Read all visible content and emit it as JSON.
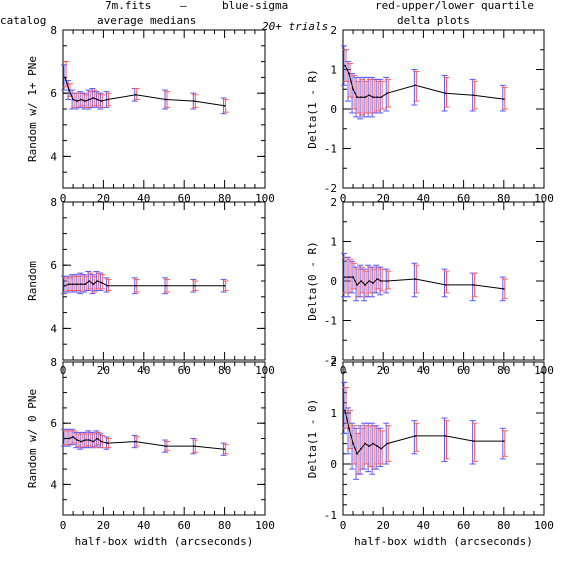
{
  "header": {
    "filename": "7m.fits",
    "dash": "—",
    "blue_label": "blue-sigma",
    "red_label": "red-upper/lower quartile",
    "catalog_label": "catalog",
    "medians_label": "average medians",
    "trials_label": "20+ trials",
    "delta_label": "delta plots"
  },
  "colors": {
    "blue": "#5a5aff",
    "red": "#ff5a5a",
    "line": "#000000"
  },
  "chart_data": [
    {
      "type": "line",
      "ylabel": "Random w/ 1+ PNe",
      "xlabel": "",
      "xlim": [
        0,
        100
      ],
      "ylim": [
        3,
        8
      ],
      "xticks": [
        "0",
        "20",
        "40",
        "60",
        "80",
        "100"
      ],
      "yticks": [
        "4",
        "6",
        "8"
      ],
      "x": [
        1,
        3,
        5,
        7,
        9,
        11,
        13,
        15,
        17,
        19,
        22,
        36,
        51,
        65,
        80
      ],
      "y": [
        6.5,
        6.1,
        5.8,
        5.75,
        5.8,
        5.75,
        5.8,
        5.85,
        5.8,
        5.75,
        5.8,
        5.95,
        5.8,
        5.75,
        5.6
      ],
      "sigma_low": [
        6.1,
        5.8,
        5.5,
        5.5,
        5.55,
        5.5,
        5.5,
        5.55,
        5.55,
        5.5,
        5.55,
        5.75,
        5.5,
        5.5,
        5.35
      ],
      "sigma_high": [
        6.9,
        6.4,
        6.1,
        6.0,
        6.05,
        6.0,
        6.1,
        6.15,
        6.05,
        6.0,
        6.05,
        6.15,
        6.1,
        6.0,
        5.85
      ],
      "quartile_low": [
        6.2,
        5.9,
        5.55,
        5.55,
        5.6,
        5.55,
        5.55,
        5.6,
        5.6,
        5.55,
        5.6,
        5.8,
        5.55,
        5.55,
        5.4
      ],
      "quartile_high": [
        7.0,
        6.3,
        6.0,
        6.0,
        6.0,
        5.95,
        6.05,
        6.1,
        6.0,
        5.95,
        6.0,
        6.15,
        6.05,
        5.95,
        5.8
      ]
    },
    {
      "type": "line",
      "ylabel": "Delta(1 - R)",
      "xlabel": "",
      "xlim": [
        0,
        100
      ],
      "ylim": [
        -2,
        2
      ],
      "xticks": [
        "0",
        "20",
        "40",
        "60",
        "80",
        "100"
      ],
      "yticks": [
        "-2",
        "-1",
        "0",
        "1",
        "2"
      ],
      "x": [
        1,
        3,
        5,
        7,
        9,
        11,
        13,
        15,
        17,
        19,
        22,
        36,
        51,
        65,
        80
      ],
      "y": [
        1.1,
        0.9,
        0.5,
        0.3,
        0.3,
        0.3,
        0.35,
        0.3,
        0.3,
        0.3,
        0.4,
        0.6,
        0.4,
        0.35,
        0.25
      ],
      "sigma_low": [
        0.6,
        0.2,
        -0.1,
        -0.2,
        -0.25,
        -0.2,
        -0.2,
        -0.2,
        -0.1,
        -0.1,
        -0.05,
        0.1,
        -0.05,
        -0.05,
        -0.05
      ],
      "sigma_high": [
        1.6,
        1.2,
        0.9,
        0.8,
        0.8,
        0.8,
        0.8,
        0.8,
        0.75,
        0.75,
        0.8,
        1.0,
        0.85,
        0.75,
        0.6
      ],
      "quartile_low": [
        0.7,
        0.3,
        0.0,
        -0.1,
        -0.15,
        -0.1,
        -0.1,
        -0.1,
        -0.05,
        0.0,
        0.05,
        0.2,
        0.05,
        0.0,
        0.0
      ],
      "quartile_high": [
        1.5,
        1.15,
        0.85,
        0.7,
        0.75,
        0.7,
        0.75,
        0.75,
        0.7,
        0.7,
        0.75,
        0.95,
        0.8,
        0.7,
        0.55
      ]
    },
    {
      "type": "line",
      "ylabel": "Random",
      "xlabel": "",
      "xlim": [
        0,
        100
      ],
      "ylim": [
        3,
        8
      ],
      "xticks": [
        "0",
        "20",
        "40",
        "60",
        "80",
        "100"
      ],
      "yticks": [
        "4",
        "6",
        "8"
      ],
      "x": [
        1,
        3,
        5,
        7,
        9,
        11,
        13,
        15,
        17,
        19,
        22,
        36,
        51,
        65,
        80
      ],
      "y": [
        5.35,
        5.4,
        5.4,
        5.4,
        5.4,
        5.4,
        5.5,
        5.4,
        5.5,
        5.45,
        5.35,
        5.35,
        5.35,
        5.35,
        5.35
      ],
      "sigma_low": [
        5.1,
        5.15,
        5.15,
        5.15,
        5.1,
        5.15,
        5.2,
        5.1,
        5.2,
        5.2,
        5.15,
        5.1,
        5.1,
        5.15,
        5.15
      ],
      "sigma_high": [
        5.65,
        5.65,
        5.7,
        5.7,
        5.75,
        5.7,
        5.8,
        5.7,
        5.8,
        5.75,
        5.6,
        5.6,
        5.6,
        5.55,
        5.55
      ],
      "quartile_low": [
        5.15,
        5.2,
        5.2,
        5.2,
        5.15,
        5.2,
        5.25,
        5.15,
        5.25,
        5.25,
        5.2,
        5.15,
        5.15,
        5.2,
        5.2
      ],
      "quartile_high": [
        5.6,
        5.6,
        5.65,
        5.65,
        5.7,
        5.65,
        5.75,
        5.65,
        5.75,
        5.7,
        5.55,
        5.55,
        5.55,
        5.5,
        5.5
      ]
    },
    {
      "type": "line",
      "ylabel": "Delta(0 - R)",
      "xlabel": "",
      "xlim": [
        0,
        100
      ],
      "ylim": [
        -2,
        2
      ],
      "xticks": [
        "0",
        "20",
        "40",
        "60",
        "80",
        "100"
      ],
      "yticks": [
        "-2",
        "-1",
        "0",
        "1",
        "2"
      ],
      "x": [
        1,
        3,
        5,
        7,
        9,
        11,
        13,
        15,
        17,
        19,
        22,
        36,
        51,
        65,
        80
      ],
      "y": [
        0.1,
        0.1,
        0.1,
        -0.1,
        0.0,
        -0.1,
        0.0,
        -0.05,
        0.05,
        0.0,
        0.0,
        0.05,
        -0.1,
        -0.1,
        -0.2
      ],
      "sigma_low": [
        -0.4,
        -0.4,
        -0.3,
        -0.5,
        -0.4,
        -0.5,
        -0.4,
        -0.4,
        -0.3,
        -0.35,
        -0.3,
        -0.4,
        -0.4,
        -0.5,
        -0.5
      ],
      "sigma_high": [
        0.7,
        0.6,
        0.5,
        0.35,
        0.4,
        0.3,
        0.4,
        0.35,
        0.4,
        0.35,
        0.3,
        0.45,
        0.3,
        0.2,
        0.1
      ],
      "quartile_low": [
        -0.3,
        -0.3,
        -0.2,
        -0.4,
        -0.3,
        -0.4,
        -0.3,
        -0.3,
        -0.2,
        -0.25,
        -0.2,
        -0.3,
        -0.3,
        -0.4,
        -0.45
      ],
      "quartile_high": [
        0.6,
        0.55,
        0.45,
        0.3,
        0.35,
        0.25,
        0.35,
        0.3,
        0.35,
        0.3,
        0.25,
        0.4,
        0.25,
        0.2,
        0.05
      ]
    },
    {
      "type": "line",
      "ylabel": "Random w/ 0 PNe",
      "xlabel": "half-box width (arcseconds)",
      "xlim": [
        0,
        100
      ],
      "ylim": [
        3,
        8
      ],
      "xticks": [
        "0",
        "20",
        "40",
        "60",
        "80",
        "100"
      ],
      "yticks": [
        "4",
        "6",
        "8"
      ],
      "x": [
        1,
        3,
        5,
        7,
        9,
        11,
        13,
        15,
        17,
        19,
        22,
        36,
        51,
        65,
        80
      ],
      "y": [
        5.5,
        5.5,
        5.55,
        5.45,
        5.4,
        5.45,
        5.45,
        5.4,
        5.5,
        5.4,
        5.35,
        5.4,
        5.25,
        5.25,
        5.15
      ],
      "sigma_low": [
        5.25,
        5.25,
        5.3,
        5.2,
        5.15,
        5.2,
        5.2,
        5.2,
        5.25,
        5.2,
        5.15,
        5.2,
        5.05,
        5.0,
        4.95
      ],
      "sigma_high": [
        5.8,
        5.8,
        5.8,
        5.7,
        5.7,
        5.7,
        5.75,
        5.7,
        5.75,
        5.65,
        5.55,
        5.6,
        5.45,
        5.5,
        5.35
      ],
      "quartile_low": [
        5.3,
        5.3,
        5.35,
        5.25,
        5.2,
        5.25,
        5.25,
        5.2,
        5.3,
        5.2,
        5.2,
        5.25,
        5.1,
        5.05,
        5.0
      ],
      "quartile_high": [
        5.75,
        5.75,
        5.75,
        5.65,
        5.65,
        5.65,
        5.7,
        5.65,
        5.7,
        5.6,
        5.5,
        5.55,
        5.4,
        5.45,
        5.3
      ]
    },
    {
      "type": "line",
      "ylabel": "Delta(1 - 0)",
      "xlabel": "half-box width (arcseconds)",
      "xlim": [
        0,
        100
      ],
      "ylim": [
        -1,
        2
      ],
      "xticks": [
        "0",
        "20",
        "40",
        "60",
        "80",
        "100"
      ],
      "yticks": [
        "-1",
        "0",
        "1",
        "2"
      ],
      "x": [
        1,
        3,
        5,
        7,
        9,
        11,
        13,
        15,
        17,
        19,
        22,
        36,
        51,
        65,
        80
      ],
      "y": [
        1.05,
        0.7,
        0.4,
        0.2,
        0.3,
        0.4,
        0.35,
        0.4,
        0.35,
        0.3,
        0.4,
        0.55,
        0.55,
        0.45,
        0.45
      ],
      "sigma_low": [
        0.6,
        0.2,
        -0.1,
        -0.3,
        -0.2,
        -0.1,
        -0.15,
        -0.2,
        -0.1,
        -0.05,
        0.0,
        0.2,
        0.05,
        0.0,
        0.1
      ],
      "sigma_high": [
        1.6,
        1.1,
        0.8,
        0.7,
        0.75,
        0.8,
        0.8,
        0.8,
        0.75,
        0.7,
        0.8,
        0.85,
        0.9,
        0.85,
        0.7
      ],
      "quartile_low": [
        0.7,
        0.3,
        0.0,
        -0.2,
        -0.1,
        0.0,
        -0.05,
        -0.1,
        0.0,
        0.0,
        0.05,
        0.25,
        0.1,
        0.05,
        0.15
      ],
      "quartile_high": [
        1.5,
        1.05,
        0.75,
        0.6,
        0.7,
        0.75,
        0.75,
        0.75,
        0.7,
        0.65,
        0.75,
        0.8,
        0.85,
        0.8,
        0.65
      ]
    }
  ]
}
